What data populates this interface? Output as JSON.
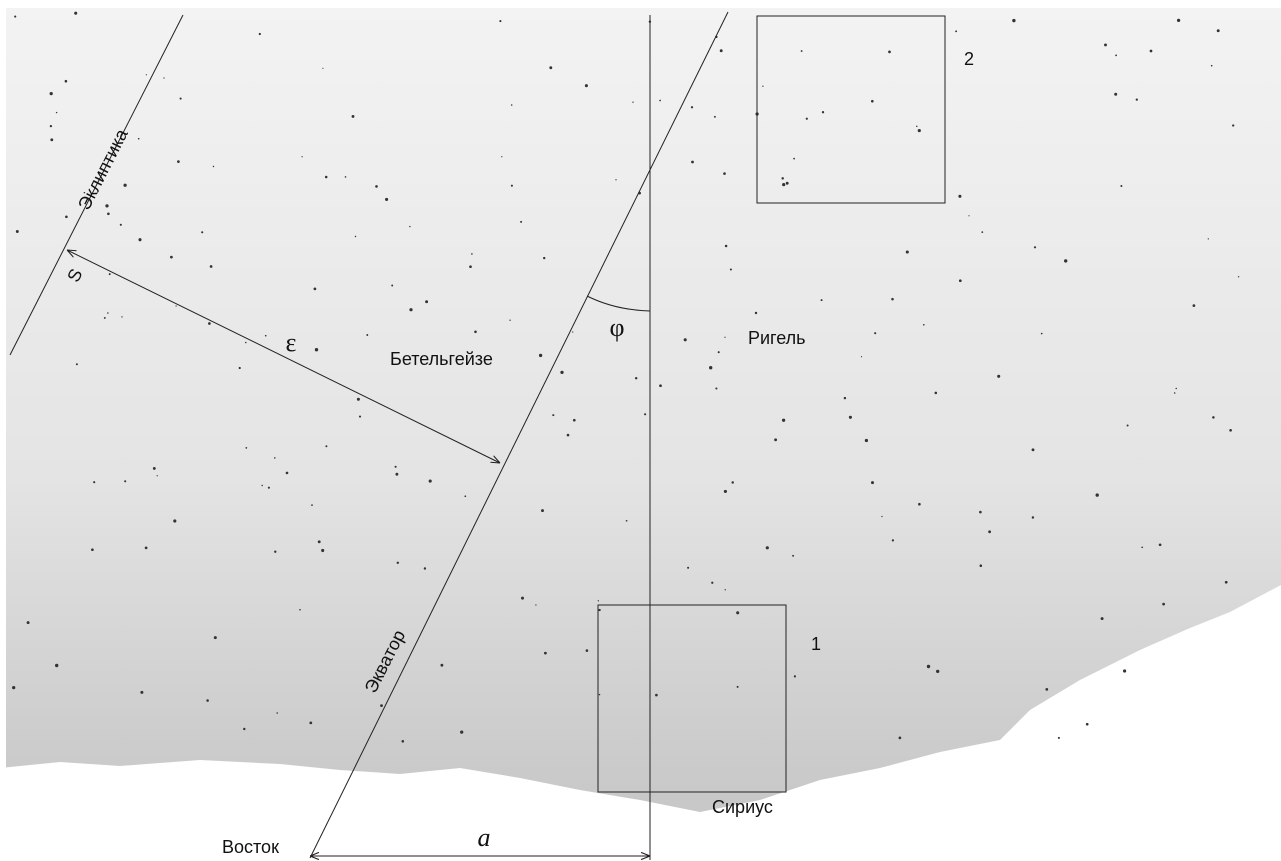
{
  "labels": {
    "ecliptic": "Эклиптика",
    "s": "S",
    "epsilon": "ε",
    "betelgeuse": "Бетельгейзе",
    "phi": "φ",
    "rigel": "Ригель",
    "box_2": "2",
    "box_1": "1",
    "equator": "Экватор",
    "sirius": "Сириус",
    "east": "Восток",
    "a": "a"
  }
}
